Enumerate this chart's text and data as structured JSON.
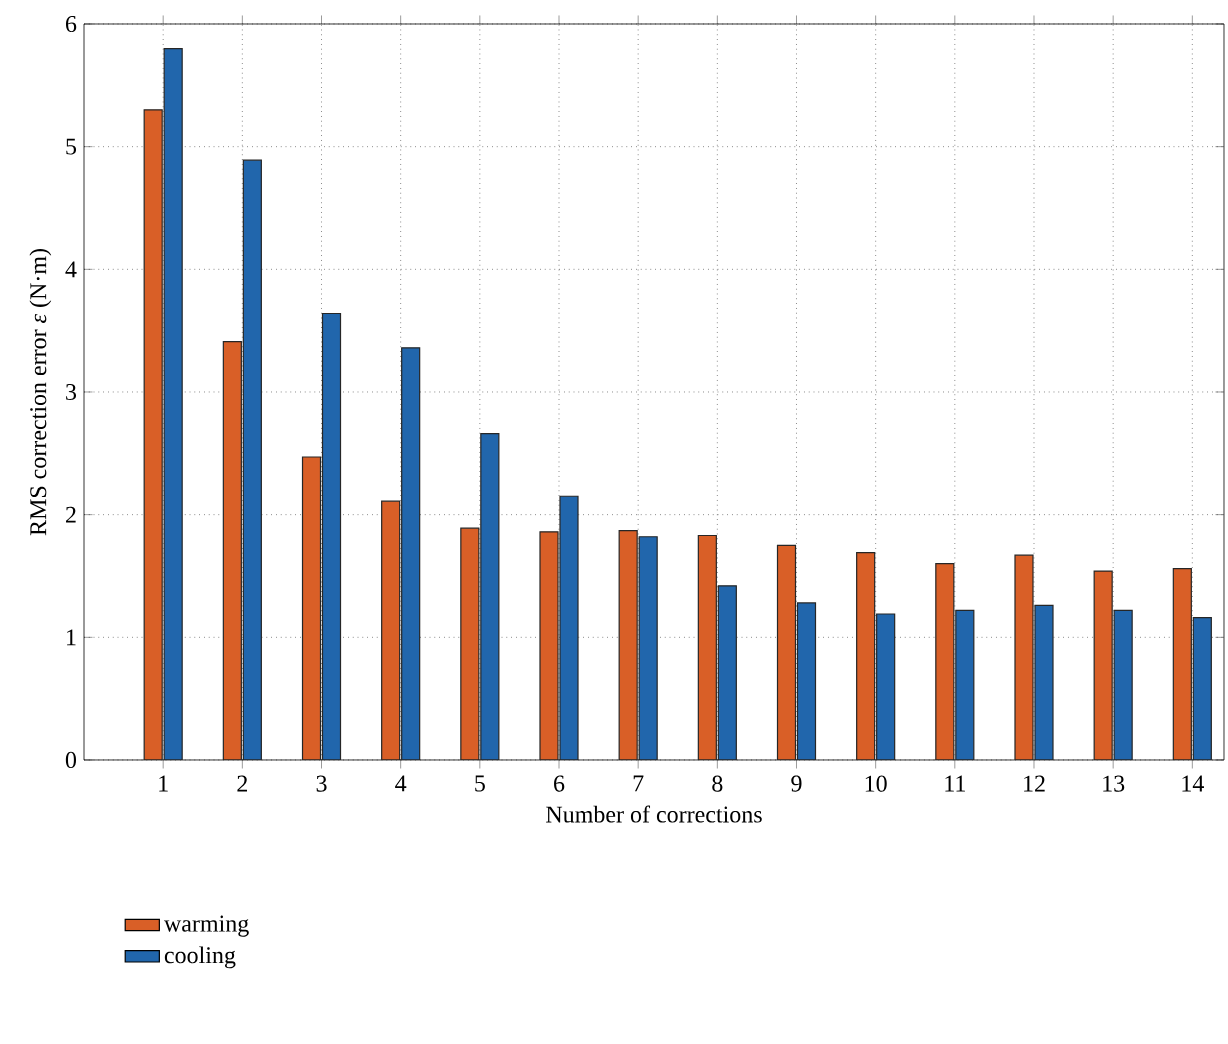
{
  "chart_data": {
    "type": "bar",
    "xlabel": "Number of corrections",
    "ylabel": "RMS correction error *ε* (N·m)",
    "categories": [
      "1",
      "2",
      "3",
      "4",
      "5",
      "6",
      "7",
      "8",
      "9",
      "10",
      "11",
      "12",
      "13",
      "14"
    ],
    "series": [
      {
        "name": "warming",
        "color": "#d95f27",
        "values": [
          5.3,
          3.41,
          2.47,
          2.11,
          1.89,
          1.86,
          1.87,
          1.83,
          1.75,
          1.69,
          1.6,
          1.67,
          1.54,
          1.56
        ]
      },
      {
        "name": "cooling",
        "color": "#2166ac",
        "values": [
          5.8,
          4.89,
          3.64,
          3.36,
          2.66,
          2.15,
          1.82,
          1.42,
          1.28,
          1.19,
          1.22,
          1.26,
          1.22,
          1.16
        ]
      }
    ],
    "ylim": [
      0,
      6
    ],
    "yticks": [
      0,
      1,
      2,
      3,
      4,
      5,
      6
    ],
    "grid": true,
    "legend": "bottom left"
  }
}
